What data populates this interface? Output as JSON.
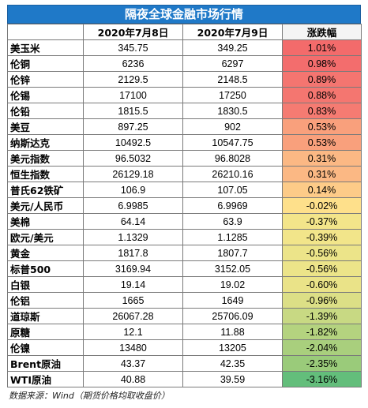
{
  "title": "隔夜全球金融市场行情",
  "headers": [
    "",
    "2020年7月8日",
    "2020年7月9日",
    "涨跌幅"
  ],
  "rows": [
    {
      "name": "美玉米",
      "d1": "345.75",
      "d2": "349.25",
      "chg": "1.01%",
      "color": "#f36b6b"
    },
    {
      "name": "伦铜",
      "d1": "6236",
      "d2": "6297",
      "chg": "0.98%",
      "color": "#f36d6d"
    },
    {
      "name": "伦锌",
      "d1": "2129.5",
      "d2": "2148.5",
      "chg": "0.89%",
      "color": "#f47570"
    },
    {
      "name": "伦锡",
      "d1": "17100",
      "d2": "17250",
      "chg": "0.88%",
      "color": "#f47670"
    },
    {
      "name": "伦铅",
      "d1": "1815.5",
      "d2": "1830.5",
      "chg": "0.83%",
      "color": "#f57b72"
    },
    {
      "name": "美豆",
      "d1": "897.25",
      "d2": "902",
      "chg": "0.53%",
      "color": "#f9a07c"
    },
    {
      "name": "纳斯达克",
      "d1": "10492.5",
      "d2": "10547.75",
      "chg": "0.53%",
      "color": "#f9a07c"
    },
    {
      "name": "美元指数",
      "d1": "96.5032",
      "d2": "96.8028",
      "chg": "0.31%",
      "color": "#fbb884"
    },
    {
      "name": "恒生指数",
      "d1": "26129.18",
      "d2": "26210.16",
      "chg": "0.31%",
      "color": "#fbb884"
    },
    {
      "name": "普氏62铁矿",
      "d1": "106.9",
      "d2": "107.05",
      "chg": "0.14%",
      "color": "#fdcb88"
    },
    {
      "name": "美元/人民币",
      "d1": "6.9985",
      "d2": "6.9969",
      "chg": "-0.02%",
      "color": "#fee08b"
    },
    {
      "name": "美棉",
      "d1": "64.14",
      "d2": "63.9",
      "chg": "-0.37%",
      "color": "#f3e58a"
    },
    {
      "name": "欧元/美元",
      "d1": "1.1329",
      "d2": "1.1285",
      "chg": "-0.39%",
      "color": "#f2e58a"
    },
    {
      "name": "黄金",
      "d1": "1817.8",
      "d2": "1807.7",
      "chg": "-0.56%",
      "color": "#ece489"
    },
    {
      "name": "标普500",
      "d1": "3169.94",
      "d2": "3152.05",
      "chg": "-0.56%",
      "color": "#ece489"
    },
    {
      "name": "白银",
      "d1": "19.14",
      "d2": "19.02",
      "chg": "-0.60%",
      "color": "#eae388"
    },
    {
      "name": "伦铝",
      "d1": "1665",
      "d2": "1649",
      "chg": "-0.96%",
      "color": "#dcdf86"
    },
    {
      "name": "道琼斯",
      "d1": "26067.28",
      "d2": "25706.09",
      "chg": "-1.39%",
      "color": "#c8d983"
    },
    {
      "name": "原糖",
      "d1": "12.1",
      "d2": "11.88",
      "chg": "-1.82%",
      "color": "#b4d37f"
    },
    {
      "name": "伦镍",
      "d1": "13480",
      "d2": "13205",
      "chg": "-2.04%",
      "color": "#a9cf7d"
    },
    {
      "name": "Brent原油",
      "d1": "43.37",
      "d2": "42.35",
      "chg": "-2.35%",
      "color": "#9acb7a"
    },
    {
      "name": "WTI原油",
      "d1": "40.88",
      "d2": "39.59",
      "chg": "-3.16%",
      "color": "#63be7b"
    }
  ],
  "source": "数据来源：Wind（期货价格均取收盘价）"
}
